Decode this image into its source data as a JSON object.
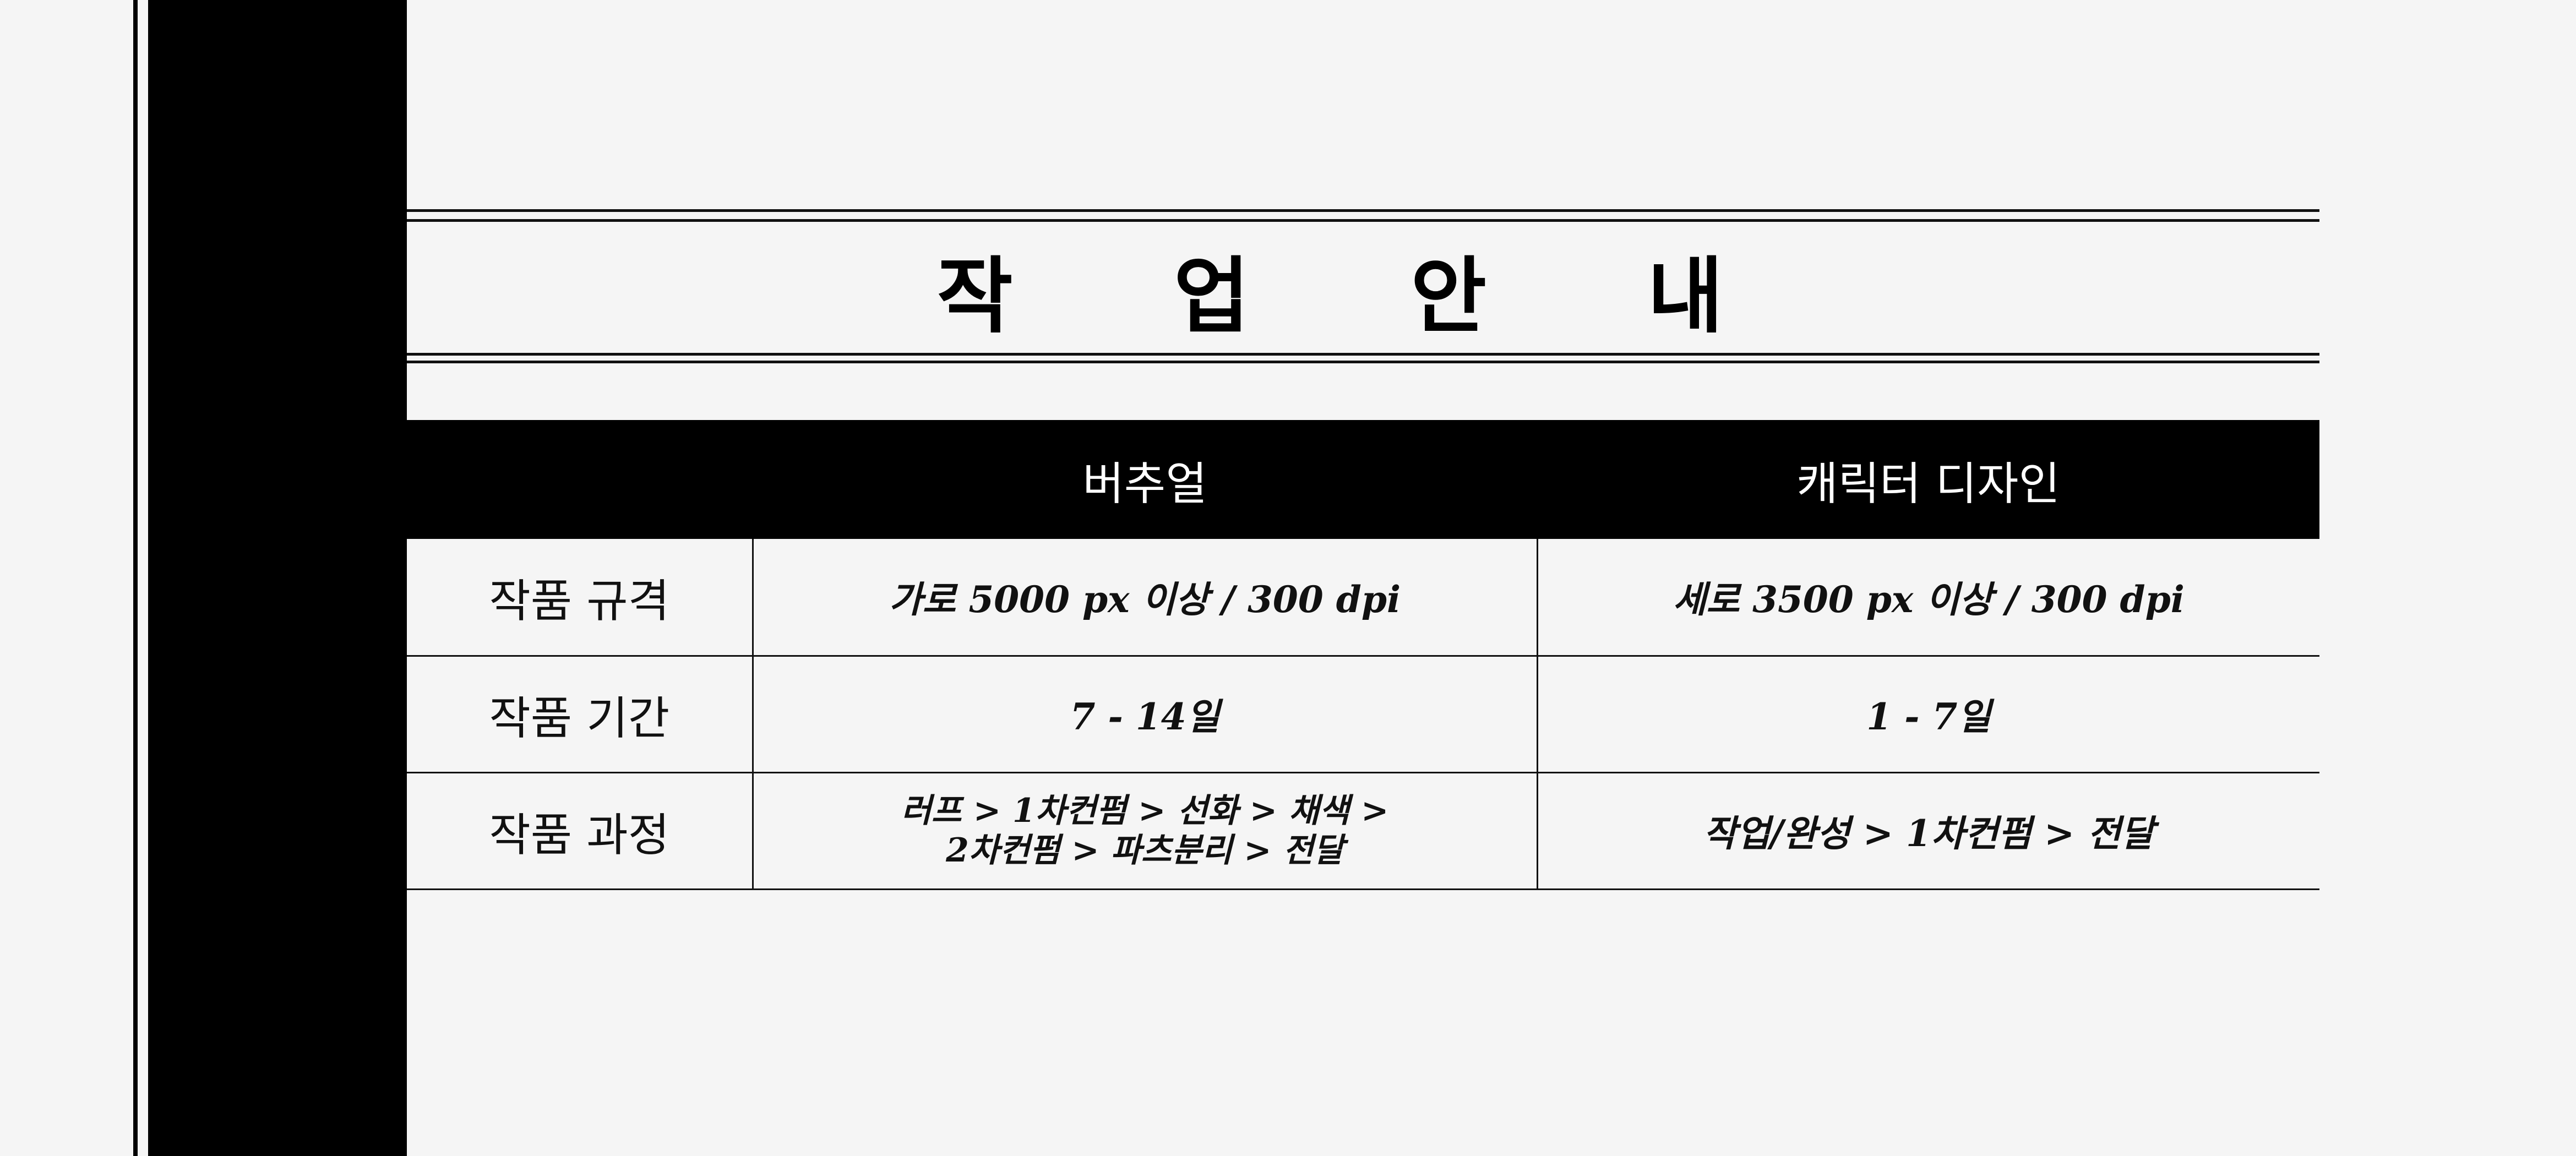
{
  "title": "작 업 안 내",
  "table": {
    "columns": [
      "",
      "버추얼",
      "캐릭터 디자인"
    ],
    "rows": [
      {
        "label": "작품 규격",
        "visual": "가로 5000 px 이상 / 300 dpi",
        "character": "세로 3500 px 이상 / 300 dpi"
      },
      {
        "label": "작품 기간",
        "visual": "7 - 14일",
        "character": "1 - 7일"
      },
      {
        "label": "작품 과정",
        "visual_lines": [
          "러프 > 1차컨펌 > 선화 > 채색 >",
          "2차컨펌 > 파츠분리 > 전달"
        ],
        "character": "작업/완성 > 1차컨펌 > 전달"
      }
    ]
  },
  "colors": {
    "background": "#f5f5f5",
    "band": "#000000",
    "header_text": "#ffffff",
    "text": "#111111"
  }
}
